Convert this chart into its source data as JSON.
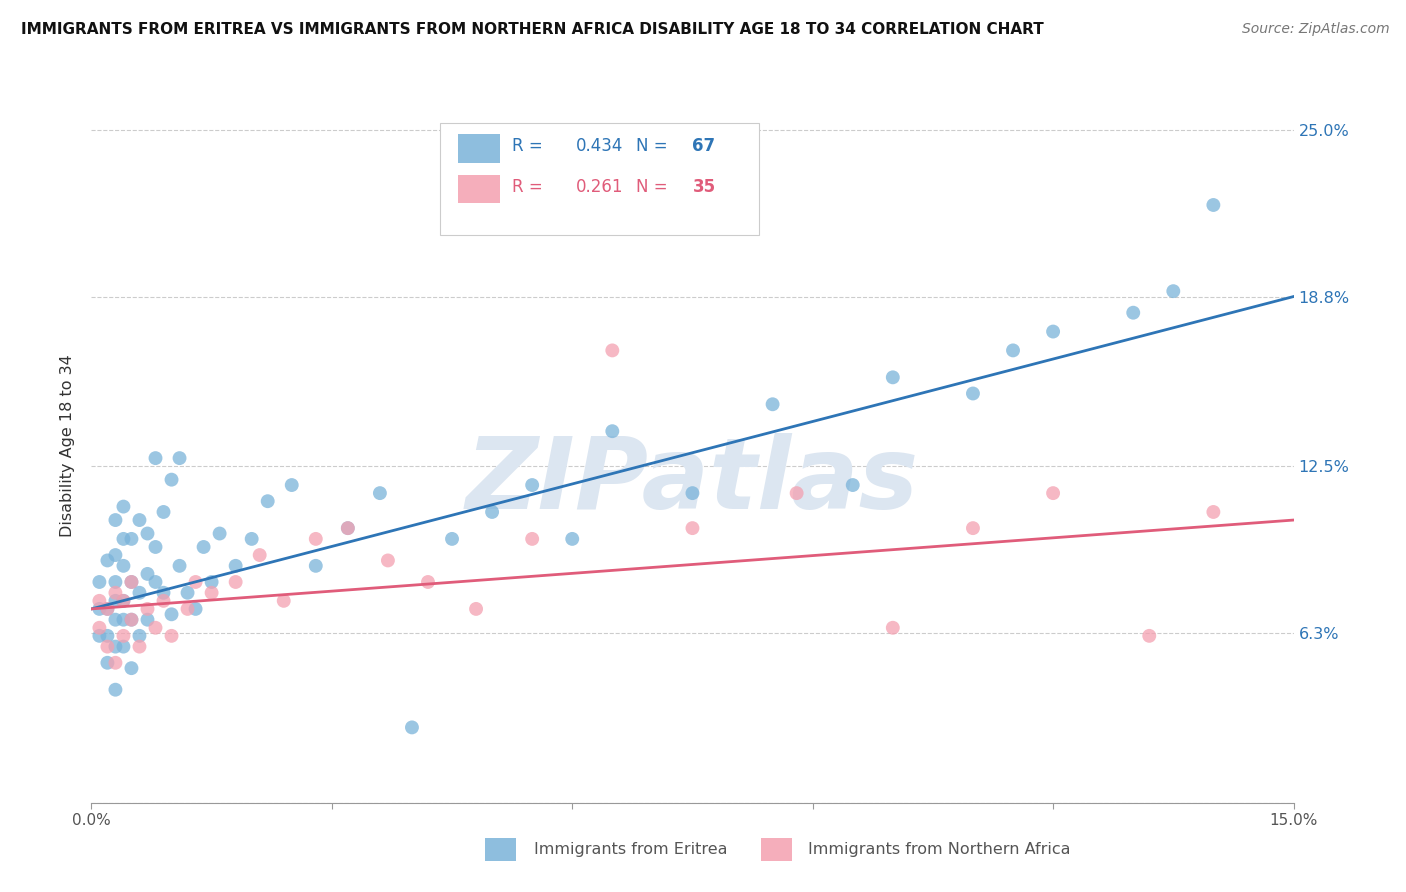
{
  "title": "IMMIGRANTS FROM ERITREA VS IMMIGRANTS FROM NORTHERN AFRICA DISABILITY AGE 18 TO 34 CORRELATION CHART",
  "source": "Source: ZipAtlas.com",
  "xlabel_blue": "Immigrants from Eritrea",
  "xlabel_pink": "Immigrants from Northern Africa",
  "ylabel": "Disability Age 18 to 34",
  "xlim": [
    0.0,
    0.15
  ],
  "ylim": [
    0.0,
    0.265
  ],
  "ytick_values": [
    0.0,
    0.063,
    0.125,
    0.188,
    0.25
  ],
  "ytick_labels": [
    "",
    "6.3%",
    "12.5%",
    "18.8%",
    "25.0%"
  ],
  "R_blue": 0.434,
  "N_blue": 67,
  "R_pink": 0.261,
  "N_pink": 35,
  "blue_color": "#7ab3d9",
  "pink_color": "#f4a0b0",
  "line_blue": "#2e75b6",
  "line_pink": "#e05c7a",
  "watermark": "ZIPatlas",
  "watermark_color": "#dce6f1",
  "blue_line_x": [
    0.0,
    0.15
  ],
  "blue_line_y": [
    0.072,
    0.188
  ],
  "pink_line_x": [
    0.0,
    0.15
  ],
  "pink_line_y": [
    0.072,
    0.105
  ],
  "blue_x": [
    0.001,
    0.001,
    0.001,
    0.002,
    0.002,
    0.002,
    0.002,
    0.003,
    0.003,
    0.003,
    0.003,
    0.003,
    0.003,
    0.003,
    0.004,
    0.004,
    0.004,
    0.004,
    0.004,
    0.004,
    0.005,
    0.005,
    0.005,
    0.005,
    0.006,
    0.006,
    0.006,
    0.007,
    0.007,
    0.007,
    0.008,
    0.008,
    0.008,
    0.009,
    0.009,
    0.01,
    0.01,
    0.011,
    0.011,
    0.012,
    0.013,
    0.014,
    0.015,
    0.016,
    0.018,
    0.02,
    0.022,
    0.025,
    0.028,
    0.032,
    0.036,
    0.04,
    0.045,
    0.05,
    0.055,
    0.06,
    0.065,
    0.075,
    0.085,
    0.095,
    0.1,
    0.11,
    0.115,
    0.12,
    0.13,
    0.135,
    0.14
  ],
  "blue_y": [
    0.062,
    0.072,
    0.082,
    0.052,
    0.062,
    0.072,
    0.09,
    0.042,
    0.058,
    0.068,
    0.075,
    0.082,
    0.092,
    0.105,
    0.058,
    0.068,
    0.075,
    0.088,
    0.098,
    0.11,
    0.05,
    0.068,
    0.082,
    0.098,
    0.062,
    0.078,
    0.105,
    0.068,
    0.085,
    0.1,
    0.082,
    0.095,
    0.128,
    0.078,
    0.108,
    0.07,
    0.12,
    0.088,
    0.128,
    0.078,
    0.072,
    0.095,
    0.082,
    0.1,
    0.088,
    0.098,
    0.112,
    0.118,
    0.088,
    0.102,
    0.115,
    0.028,
    0.098,
    0.108,
    0.118,
    0.098,
    0.138,
    0.115,
    0.148,
    0.118,
    0.158,
    0.152,
    0.168,
    0.175,
    0.182,
    0.19,
    0.222
  ],
  "pink_x": [
    0.001,
    0.001,
    0.002,
    0.002,
    0.003,
    0.003,
    0.004,
    0.004,
    0.005,
    0.005,
    0.006,
    0.007,
    0.008,
    0.009,
    0.01,
    0.012,
    0.013,
    0.015,
    0.018,
    0.021,
    0.024,
    0.028,
    0.032,
    0.037,
    0.042,
    0.048,
    0.055,
    0.065,
    0.075,
    0.088,
    0.1,
    0.11,
    0.12,
    0.132,
    0.14
  ],
  "pink_y": [
    0.065,
    0.075,
    0.058,
    0.072,
    0.052,
    0.078,
    0.062,
    0.075,
    0.068,
    0.082,
    0.058,
    0.072,
    0.065,
    0.075,
    0.062,
    0.072,
    0.082,
    0.078,
    0.082,
    0.092,
    0.075,
    0.098,
    0.102,
    0.09,
    0.082,
    0.072,
    0.098,
    0.168,
    0.102,
    0.115,
    0.065,
    0.102,
    0.115,
    0.062,
    0.108
  ]
}
